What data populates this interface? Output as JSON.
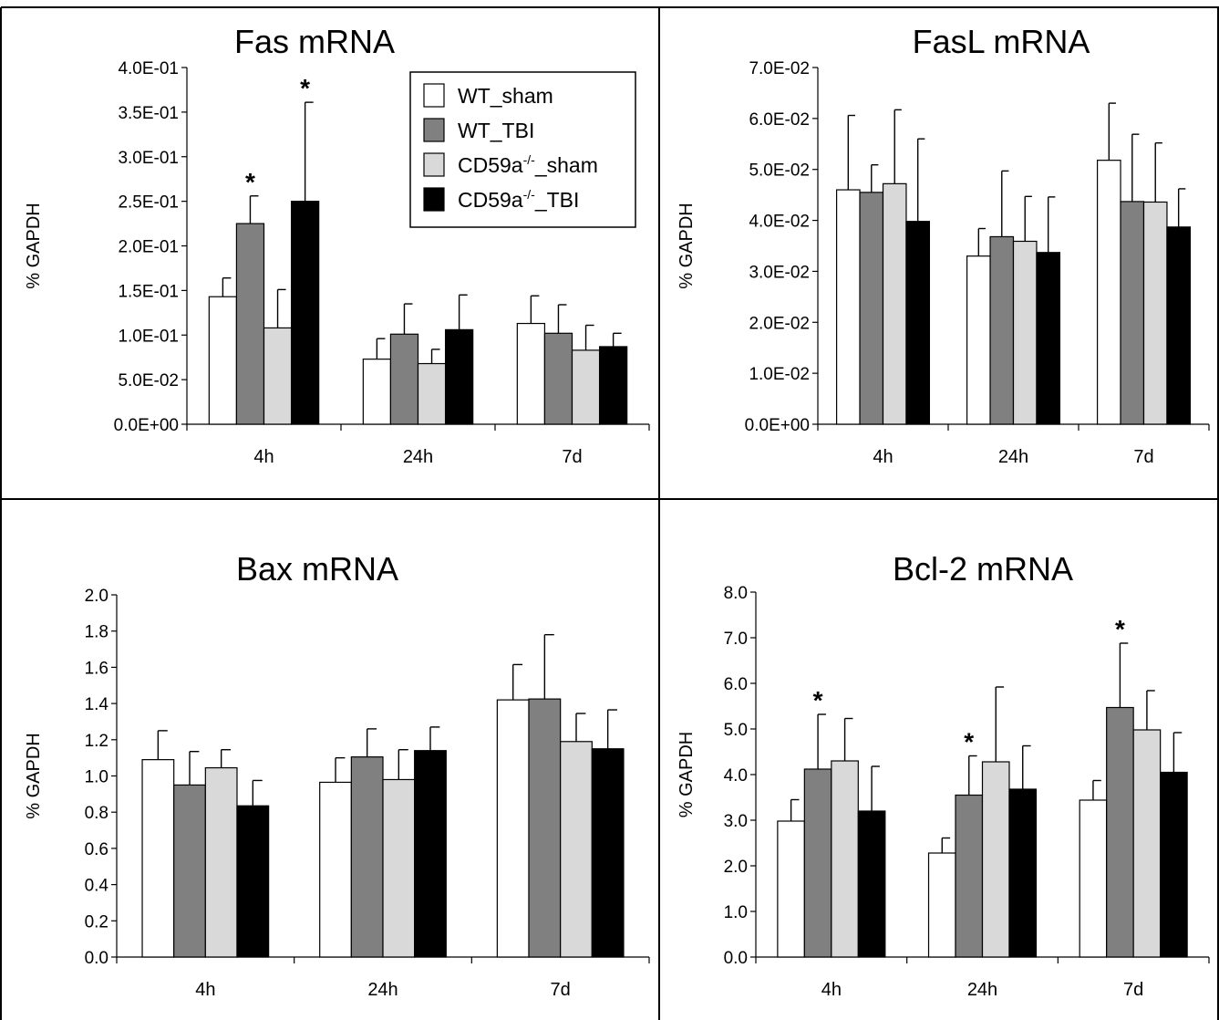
{
  "legend": [
    {
      "label": "WT_sham",
      "fill": "#ffffff"
    },
    {
      "label": "WT_TBI",
      "fill": "#808080"
    },
    {
      "label": "CD59a-/-_sham",
      "fill": "#d9d9d9"
    },
    {
      "label": "CD59a-/-_TBI",
      "fill": "#000000"
    }
  ],
  "chart_data": [
    {
      "type": "bar",
      "title": "Fas mRNA",
      "ylabel": "% GAPDH",
      "categories": [
        "4h",
        "24h",
        "7d"
      ],
      "ylim": [
        0,
        0.4
      ],
      "ytick_labels": [
        "0.0E+00",
        "5.0E-02",
        "1.0E-01",
        "1.5E-01",
        "2.0E-01",
        "2.5E-01",
        "3.0E-01",
        "3.5E-01",
        "4.0E-01"
      ],
      "legend_placement": "top-right",
      "series": [
        {
          "name": "WT_sham",
          "values": [
            0.143,
            0.073,
            0.113
          ],
          "errors": [
            0.021,
            0.023,
            0.031
          ]
        },
        {
          "name": "WT_TBI",
          "values": [
            0.225,
            0.101,
            0.102
          ],
          "errors": [
            0.031,
            0.034,
            0.032
          ]
        },
        {
          "name": "CD59a-/-_sham",
          "values": [
            0.108,
            0.068,
            0.083
          ],
          "errors": [
            0.043,
            0.016,
            0.028
          ]
        },
        {
          "name": "CD59a-/-_TBI",
          "values": [
            0.25,
            0.106,
            0.087
          ],
          "errors": [
            0.111,
            0.039,
            0.015
          ]
        }
      ],
      "significance": [
        {
          "series": "WT_TBI",
          "category": "4h",
          "mark": "*"
        },
        {
          "series": "CD59a-/-_TBI",
          "category": "4h",
          "mark": "*"
        }
      ]
    },
    {
      "type": "bar",
      "title": "FasL mRNA",
      "ylabel": "% GAPDH",
      "categories": [
        "4h",
        "24h",
        "7d"
      ],
      "ylim": [
        0,
        0.07
      ],
      "ytick_labels": [
        "0.0E+00",
        "1.0E-02",
        "2.0E-02",
        "3.0E-02",
        "4.0E-02",
        "5.0E-02",
        "6.0E-02",
        "7.0E-02"
      ],
      "series": [
        {
          "name": "WT_sham",
          "values": [
            0.046,
            0.033,
            0.0518
          ],
          "errors": [
            0.0146,
            0.0054,
            0.0112
          ]
        },
        {
          "name": "WT_TBI",
          "values": [
            0.0455,
            0.0368,
            0.0437
          ],
          "errors": [
            0.0054,
            0.0129,
            0.0132
          ]
        },
        {
          "name": "CD59a-/-_sham",
          "values": [
            0.0472,
            0.0359,
            0.0436
          ],
          "errors": [
            0.0145,
            0.0088,
            0.0116
          ]
        },
        {
          "name": "CD59a-/-_TBI",
          "values": [
            0.0398,
            0.0337,
            0.0387
          ],
          "errors": [
            0.0162,
            0.0109,
            0.0075
          ]
        }
      ],
      "significance": []
    },
    {
      "type": "bar",
      "title": "Bax mRNA",
      "ylabel": "% GAPDH",
      "categories": [
        "4h",
        "24h",
        "7d"
      ],
      "ylim": [
        0,
        2.0
      ],
      "ytick_labels": [
        "0.0",
        "0.2",
        "0.4",
        "0.6",
        "0.8",
        "1.0",
        "1.2",
        "1.4",
        "1.6",
        "1.8",
        "2.0"
      ],
      "series": [
        {
          "name": "WT_sham",
          "values": [
            1.09,
            0.965,
            1.42
          ],
          "errors": [
            0.16,
            0.135,
            0.195
          ]
        },
        {
          "name": "WT_TBI",
          "values": [
            0.95,
            1.105,
            1.425
          ],
          "errors": [
            0.185,
            0.155,
            0.355
          ]
        },
        {
          "name": "CD59a-/-_sham",
          "values": [
            1.045,
            0.98,
            1.19
          ],
          "errors": [
            0.1,
            0.165,
            0.155
          ]
        },
        {
          "name": "CD59a-/-_TBI",
          "values": [
            0.835,
            1.14,
            1.15
          ],
          "errors": [
            0.14,
            0.13,
            0.215
          ]
        }
      ],
      "significance": []
    },
    {
      "type": "bar",
      "title": "Bcl-2 mRNA",
      "ylabel": "% GAPDH",
      "categories": [
        "4h",
        "24h",
        "7d"
      ],
      "ylim": [
        0,
        8.0
      ],
      "ytick_labels": [
        "0.0",
        "1.0",
        "2.0",
        "3.0",
        "4.0",
        "5.0",
        "6.0",
        "7.0",
        "8.0"
      ],
      "series": [
        {
          "name": "WT_sham",
          "values": [
            2.98,
            2.28,
            3.44
          ],
          "errors": [
            0.47,
            0.33,
            0.43
          ]
        },
        {
          "name": "WT_TBI",
          "values": [
            4.12,
            3.55,
            5.47
          ],
          "errors": [
            1.2,
            0.86,
            1.41
          ]
        },
        {
          "name": "CD59a-/-_sham",
          "values": [
            4.3,
            4.28,
            4.98
          ],
          "errors": [
            0.93,
            1.64,
            0.86
          ]
        },
        {
          "name": "CD59a-/-_TBI",
          "values": [
            3.2,
            3.68,
            4.05
          ],
          "errors": [
            0.98,
            0.95,
            0.87
          ]
        }
      ],
      "significance": [
        {
          "series": "WT_TBI",
          "category": "4h",
          "mark": "*"
        },
        {
          "series": "WT_TBI",
          "category": "24h",
          "mark": "*"
        },
        {
          "series": "WT_TBI",
          "category": "7d",
          "mark": "*"
        }
      ]
    }
  ]
}
